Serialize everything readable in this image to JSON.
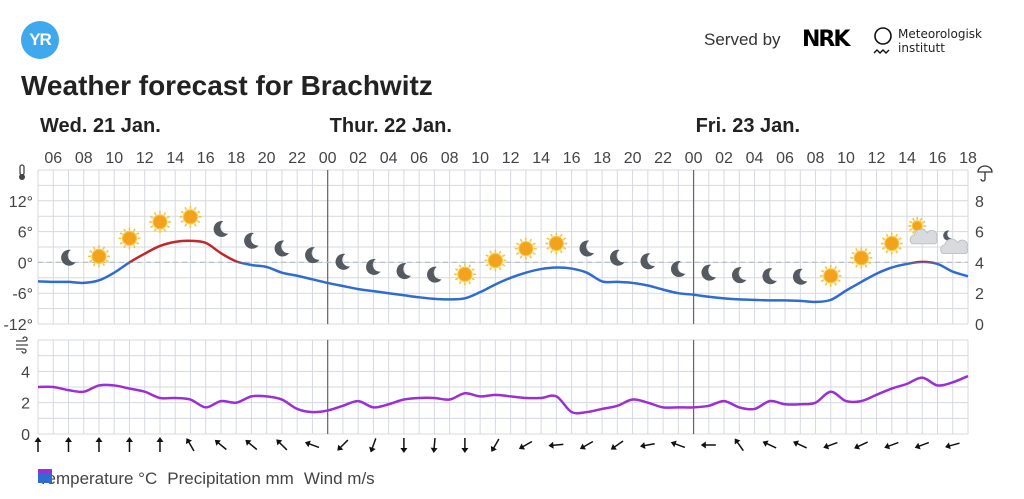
{
  "header": {
    "logo_text": "YR",
    "served_by": "Served by",
    "nrk_logo": "NRK",
    "met_line1": "Meteorologisk",
    "met_line2": "institutt",
    "title": "Weather forecast for Brachwitz"
  },
  "colors": {
    "warm": "#c0282d",
    "cold": "#2f6bd0",
    "wind": "#9b2fd6",
    "grid": "#d5d9e0",
    "sun": "#f3a21b",
    "moon": "#555a60",
    "cloud": "#d8dadd"
  },
  "days": [
    "Wed. 21 Jan.",
    "Thur. 22 Jan.",
    "Fri. 23 Jan."
  ],
  "hour_labels": [
    "06",
    "08",
    "10",
    "12",
    "14",
    "16",
    "18",
    "20",
    "22",
    "00",
    "02",
    "04",
    "06",
    "08",
    "10",
    "12",
    "14",
    "16",
    "18",
    "20",
    "22",
    "00",
    "02",
    "04",
    "06",
    "08",
    "10",
    "12",
    "14",
    "16",
    "18"
  ],
  "temp_axis": {
    "ticks": [
      "12°",
      "6°",
      "0°",
      "-6°",
      "-12°"
    ],
    "icon": "thermometer-icon"
  },
  "precip_axis": {
    "ticks": [
      "8",
      "6",
      "4",
      "2",
      "0"
    ],
    "icon": "umbrella-icon"
  },
  "wind_axis": {
    "ticks": [
      "4",
      "2",
      "0"
    ],
    "icon": "wind-icon"
  },
  "chart_data": {
    "type": "line",
    "x_start": "Wed 21 Jan 05:00",
    "x_step_hours": 1,
    "temperature_c": [
      -3.7,
      -3.8,
      -3.8,
      -4.0,
      -3.5,
      -2.0,
      0.0,
      1.7,
      3.2,
      4.0,
      4.2,
      3.8,
      1.8,
      0.2,
      -0.5,
      -0.9,
      -2.0,
      -2.6,
      -3.3,
      -4.0,
      -4.6,
      -5.2,
      -5.6,
      -6.0,
      -6.4,
      -6.8,
      -7.1,
      -7.2,
      -7.0,
      -5.8,
      -4.3,
      -3.0,
      -2.0,
      -1.3,
      -1.0,
      -1.2,
      -2.0,
      -3.7,
      -3.8,
      -4.0,
      -4.5,
      -5.3,
      -6.0,
      -6.3,
      -6.7,
      -7.0,
      -7.2,
      -7.3,
      -7.4,
      -7.4,
      -7.5,
      -7.7,
      -7.3,
      -5.5,
      -3.8,
      -2.2,
      -1.0,
      -0.3,
      0.1,
      -0.3,
      -1.8,
      -2.7
    ],
    "precipitation_mm": [],
    "wind_ms": [
      3.0,
      3.0,
      2.8,
      2.7,
      3.1,
      3.1,
      2.9,
      2.7,
      2.3,
      2.3,
      2.2,
      1.7,
      2.1,
      2.0,
      2.4,
      2.4,
      2.2,
      1.6,
      1.4,
      1.5,
      1.8,
      2.1,
      1.7,
      1.9,
      2.2,
      2.3,
      2.3,
      2.2,
      2.6,
      2.4,
      2.5,
      2.4,
      2.3,
      2.3,
      2.4,
      1.4,
      1.4,
      1.6,
      1.8,
      2.2,
      2.0,
      1.7,
      1.7,
      1.7,
      1.8,
      2.1,
      1.7,
      1.6,
      2.1,
      1.9,
      1.9,
      2.0,
      2.7,
      2.1,
      2.1,
      2.5,
      2.9,
      3.2,
      3.6,
      3.1,
      3.3,
      3.7
    ],
    "temp_ylim": [
      -12,
      18
    ],
    "precip_ylim": [
      0,
      10
    ],
    "wind_ylim": [
      0,
      6
    ],
    "symbols_start_offset_hours": 2,
    "symbols_step_hours": 2,
    "symbols": [
      "moon",
      "sun",
      "sun",
      "sun",
      "sun",
      "moon",
      "moon",
      "moon",
      "moon",
      "moon",
      "moon",
      "moon",
      "moon",
      "sun",
      "sun",
      "sun",
      "sun",
      "moon",
      "moon",
      "moon",
      "moon",
      "moon",
      "moon",
      "moon",
      "moon",
      "sun",
      "sun",
      "sun",
      "partly-cloudy-day",
      "partly-cloudy-night"
    ],
    "wind_dir_step_hours": 2,
    "wind_arrow_rotation_deg": [
      0,
      0,
      0,
      0,
      0,
      -30,
      -50,
      -50,
      -45,
      -70,
      225,
      200,
      180,
      185,
      180,
      210,
      240,
      265,
      240,
      235,
      260,
      290,
      270,
      325,
      295,
      295,
      250,
      245,
      250,
      250,
      255
    ]
  },
  "legend": {
    "temperature": "Temperature °C",
    "precipitation": "Precipitation mm",
    "wind": "Wind m/s"
  }
}
